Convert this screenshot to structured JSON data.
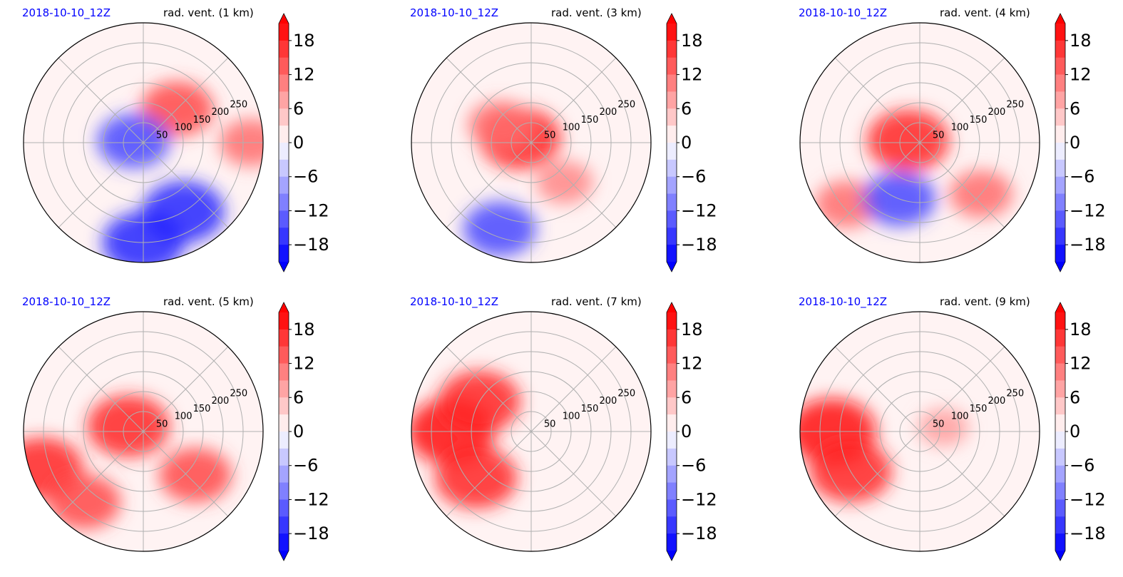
{
  "figure": {
    "panels": [
      {
        "date_label": "2018-10-10_12Z",
        "field_label": "rad. vent. (1 km)"
      },
      {
        "date_label": "2018-10-10_12Z",
        "field_label": "rad. vent. (3 km)"
      },
      {
        "date_label": "2018-10-10_12Z",
        "field_label": "rad. vent. (4 km)"
      },
      {
        "date_label": "2018-10-10_12Z",
        "field_label": "rad. vent. (5 km)"
      },
      {
        "date_label": "2018-10-10_12Z",
        "field_label": "rad. vent. (7 km)"
      },
      {
        "date_label": "2018-10-10_12Z",
        "field_label": "rad. vent. (9 km)"
      }
    ]
  },
  "colors": {
    "positive": "#ff0000",
    "negative": "#0000ff",
    "neutral": "#ffffff",
    "date_label": "#0000ff",
    "grid": "#b0b0b0"
  },
  "chart_data": [
    {
      "type": "heatmap",
      "projection": "polar",
      "title_left": "2018-10-10_12Z",
      "title_right": "rad. vent. (1 km)",
      "radial_ticks": [
        "50",
        "100",
        "150",
        "200",
        "250"
      ],
      "rlim": [
        0,
        300
      ],
      "grid": true,
      "colorbar": {
        "ticks": [
          "18",
          "12",
          "6",
          "0",
          "−6",
          "−12",
          "−18"
        ],
        "vmin": -21,
        "vmax": 21,
        "extend": "both",
        "cmap": "bwr"
      },
      "features": [
        {
          "theta_deg": 45,
          "r": 120,
          "value": 15
        },
        {
          "theta_deg": 170,
          "r": 25,
          "value": -15
        },
        {
          "theta_deg": 300,
          "r": 200,
          "value": -18
        },
        {
          "theta_deg": 270,
          "r": 250,
          "value": -18
        },
        {
          "theta_deg": 0,
          "r": 270,
          "value": 12
        }
      ]
    },
    {
      "type": "heatmap",
      "projection": "polar",
      "title_left": "2018-10-10_12Z",
      "title_right": "rad. vent. (3 km)",
      "radial_ticks": [
        "50",
        "100",
        "150",
        "200",
        "250"
      ],
      "rlim": [
        0,
        300
      ],
      "grid": true,
      "colorbar": {
        "ticks": [
          "18",
          "12",
          "6",
          "0",
          "−6",
          "−12",
          "−18"
        ],
        "vmin": -21,
        "vmax": 21,
        "extend": "both",
        "cmap": "bwr"
      },
      "features": [
        {
          "theta_deg": 160,
          "r": 30,
          "value": 18
        },
        {
          "theta_deg": 150,
          "r": 90,
          "value": 12
        },
        {
          "theta_deg": 250,
          "r": 230,
          "value": -15
        },
        {
          "theta_deg": 310,
          "r": 130,
          "value": 10
        }
      ]
    },
    {
      "type": "heatmap",
      "projection": "polar",
      "title_left": "2018-10-10_12Z",
      "title_right": "rad. vent. (4 km)",
      "radial_ticks": [
        "50",
        "100",
        "150",
        "200",
        "250"
      ],
      "rlim": [
        0,
        300
      ],
      "grid": true,
      "colorbar": {
        "ticks": [
          "18",
          "12",
          "6",
          "0",
          "−6",
          "−12",
          "−18"
        ],
        "vmin": -21,
        "vmax": 21,
        "extend": "both",
        "cmap": "bwr"
      },
      "features": [
        {
          "theta_deg": 170,
          "r": 30,
          "value": 18
        },
        {
          "theta_deg": 220,
          "r": 240,
          "value": 12
        },
        {
          "theta_deg": 250,
          "r": 150,
          "value": -15
        },
        {
          "theta_deg": 320,
          "r": 200,
          "value": 12
        }
      ]
    },
    {
      "type": "heatmap",
      "projection": "polar",
      "title_left": "2018-10-10_12Z",
      "title_right": "rad. vent. (5 km)",
      "radial_ticks": [
        "50",
        "100",
        "150",
        "200",
        "250"
      ],
      "rlim": [
        0,
        300
      ],
      "grid": true,
      "colorbar": {
        "ticks": [
          "18",
          "12",
          "6",
          "0",
          "−6",
          "−12",
          "−18"
        ],
        "vmin": -21,
        "vmax": 21,
        "extend": "both",
        "cmap": "bwr"
      },
      "features": [
        {
          "theta_deg": 160,
          "r": 40,
          "value": 18
        },
        {
          "theta_deg": 200,
          "r": 270,
          "value": 18
        },
        {
          "theta_deg": 230,
          "r": 230,
          "value": 15
        },
        {
          "theta_deg": 320,
          "r": 170,
          "value": 15
        }
      ]
    },
    {
      "type": "heatmap",
      "projection": "polar",
      "title_left": "2018-10-10_12Z",
      "title_right": "rad. vent. (7 km)",
      "radial_ticks": [
        "50",
        "100",
        "150",
        "200",
        "250"
      ],
      "rlim": [
        0,
        300
      ],
      "grid": true,
      "colorbar": {
        "ticks": [
          "18",
          "12",
          "6",
          "0",
          "−6",
          "−12",
          "−18"
        ],
        "vmin": -21,
        "vmax": 21,
        "extend": "both",
        "cmap": "bwr"
      },
      "features": [
        {
          "theta_deg": 180,
          "r": 200,
          "value": 20
        },
        {
          "theta_deg": 150,
          "r": 150,
          "value": 18
        },
        {
          "theta_deg": 220,
          "r": 180,
          "value": 18
        }
      ]
    },
    {
      "type": "heatmap",
      "projection": "polar",
      "title_left": "2018-10-10_12Z",
      "title_right": "rad. vent. (9 km)",
      "radial_ticks": [
        "50",
        "100",
        "150",
        "200",
        "250"
      ],
      "rlim": [
        0,
        300
      ],
      "grid": true,
      "colorbar": {
        "ticks": [
          "18",
          "12",
          "6",
          "0",
          "−6",
          "−12",
          "−18"
        ],
        "vmin": -21,
        "vmax": 21,
        "extend": "both",
        "cmap": "bwr"
      },
      "features": [
        {
          "theta_deg": 180,
          "r": 220,
          "value": 20
        },
        {
          "theta_deg": 210,
          "r": 200,
          "value": 18
        },
        {
          "theta_deg": 10,
          "r": 60,
          "value": 8
        }
      ]
    }
  ]
}
